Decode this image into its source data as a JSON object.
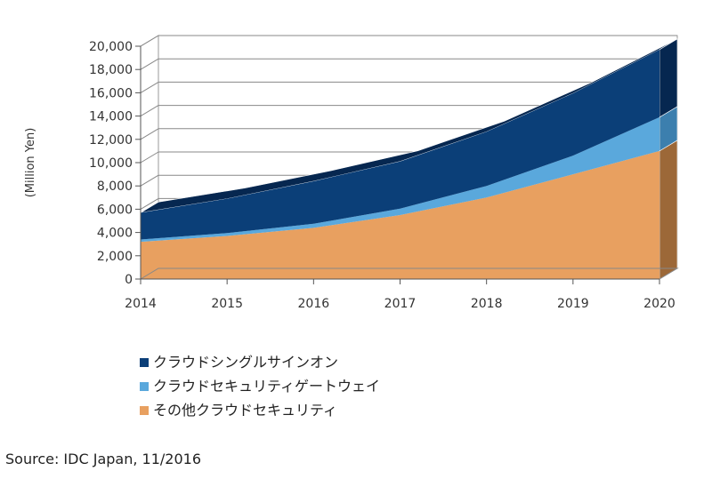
{
  "chart_data": {
    "type": "area",
    "stacked": true,
    "three_d": true,
    "title": "",
    "xlabel": "",
    "ylabel": "(Million Yen)",
    "x": [
      "2014",
      "2015",
      "2016",
      "2017",
      "2018",
      "2019",
      "2020"
    ],
    "ylim": [
      0,
      20000
    ],
    "yticks": [
      "0",
      "2,000",
      "4,000",
      "6,000",
      "8,000",
      "10,000",
      "12,000",
      "14,000",
      "16,000",
      "18,000",
      "20,000"
    ],
    "grid": true,
    "legend_position": "bottom-left",
    "series": [
      {
        "name": "その他クラウドセキュリティ",
        "color": "#E8A060",
        "side_color": "#9C6838",
        "values": [
          3200,
          3700,
          4400,
          5500,
          7000,
          9000,
          11000
        ]
      },
      {
        "name": "クラウドセキュリティゲートウェイ",
        "color": "#5AA8DC",
        "side_color": "#3C7FAE",
        "values": [
          200,
          250,
          350,
          550,
          1000,
          1600,
          2900
        ]
      },
      {
        "name": "クラウドシングルサインオン",
        "color": "#0B3F78",
        "side_color": "#062750",
        "values": [
          2300,
          2950,
          3650,
          4050,
          4650,
          5350,
          5800
        ]
      }
    ],
    "legend_order": [
      2,
      1,
      0
    ]
  },
  "source": "Source: IDC Japan, 11/2016"
}
